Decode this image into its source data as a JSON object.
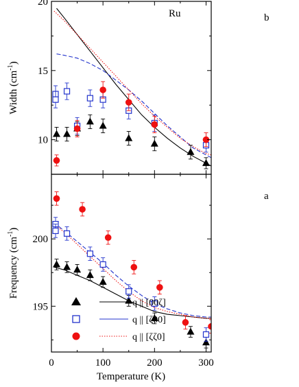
{
  "chart_data": [
    {
      "id": "b",
      "type": "scatter",
      "panel_label": "b",
      "sample_label": "Ru",
      "ylabel": "Width (cm-1)",
      "ylabel_main": "Width (cm",
      "ylabel_sup": "-1",
      "ylabel_tail": ")",
      "xlim": [
        0,
        310
      ],
      "ylim": [
        7.5,
        20
      ],
      "y_ticks": [
        10,
        15,
        20
      ],
      "series": [
        {
          "marker": "triangle",
          "color": "#000000",
          "x": [
            10,
            30,
            50,
            75,
            100,
            150,
            200,
            270,
            300
          ],
          "y": [
            10.4,
            10.4,
            10.8,
            11.3,
            11.0,
            10.1,
            9.7,
            9.1,
            8.3
          ],
          "err": [
            0.5,
            0.5,
            0.5,
            0.5,
            0.5,
            0.5,
            0.5,
            0.5,
            0.4
          ]
        },
        {
          "marker": "open-square",
          "color": "#2233cc",
          "x": [
            8,
            8,
            30,
            50,
            75,
            100,
            150,
            200,
            300
          ],
          "y": [
            13.3,
            12.9,
            13.5,
            11.0,
            13.0,
            12.9,
            12.1,
            11.2,
            9.6
          ],
          "err": [
            0.6,
            0.6,
            0.6,
            0.6,
            0.6,
            0.6,
            0.6,
            0.6,
            0.5
          ]
        },
        {
          "marker": "filled-circle",
          "color": "#ee1111",
          "x": [
            10,
            50,
            100,
            150,
            200,
            300
          ],
          "y": [
            8.5,
            10.8,
            13.6,
            12.7,
            11.1,
            10.0
          ],
          "err": [
            0.4,
            0.6,
            0.6,
            0.6,
            0.6,
            0.5
          ]
        }
      ],
      "curves": [
        {
          "style": "solid",
          "color": "#000000",
          "x": [
            10,
            25,
            50,
            75,
            100,
            125,
            150,
            175,
            200,
            225,
            250,
            275,
            300,
            310
          ],
          "y": [
            19.5,
            18.8,
            17.6,
            16.4,
            15.2,
            14.0,
            12.9,
            11.8,
            10.9,
            10.1,
            9.4,
            8.8,
            8.3,
            8.1
          ]
        },
        {
          "style": "dashed",
          "color": "#2233cc",
          "x": [
            10,
            25,
            50,
            75,
            100,
            125,
            150,
            175,
            200,
            225,
            250,
            275,
            300,
            310
          ],
          "y": [
            16.2,
            16.1,
            15.9,
            15.5,
            15.0,
            14.3,
            13.6,
            12.8,
            11.9,
            11.0,
            10.2,
            9.4,
            8.9,
            8.7
          ]
        },
        {
          "style": "dotted",
          "color": "#ee1111",
          "x": [
            5,
            25,
            50,
            75,
            100,
            125,
            150,
            175,
            200,
            225,
            250,
            275,
            300,
            310
          ],
          "y": [
            19.3,
            18.6,
            17.6,
            16.6,
            15.6,
            14.6,
            13.6,
            12.6,
            11.7,
            10.9,
            10.1,
            9.5,
            9.0,
            8.9
          ]
        }
      ]
    },
    {
      "id": "a",
      "type": "scatter",
      "panel_label": "a",
      "xlabel": "Temperature (K)",
      "ylabel": "Frequency (cm-1)",
      "ylabel_main": "Frequency (cm",
      "ylabel_sup": "-1",
      "ylabel_tail": ")",
      "xlim": [
        0,
        310
      ],
      "ylim": [
        191.6,
        204.8
      ],
      "x_ticks": [
        0,
        100,
        200,
        300
      ],
      "y_ticks": [
        195,
        200
      ],
      "series": [
        {
          "name": "q || [00ζ]",
          "marker": "triangle",
          "color": "#000000",
          "x": [
            10,
            30,
            50,
            75,
            100,
            150,
            200,
            270,
            300
          ],
          "y": [
            198.1,
            197.9,
            197.7,
            197.3,
            196.8,
            195.4,
            194.1,
            193.1,
            192.3
          ],
          "err": [
            0.4,
            0.4,
            0.4,
            0.4,
            0.4,
            0.4,
            0.4,
            0.4,
            0.4
          ]
        },
        {
          "name": "q || [ζ00]",
          "marker": "open-square",
          "color": "#2233cc",
          "x": [
            8,
            8,
            30,
            75,
            100,
            150,
            200,
            300
          ],
          "y": [
            201.1,
            200.6,
            200.4,
            198.9,
            198.1,
            196.1,
            195.2,
            192.9
          ],
          "err": [
            0.5,
            0.5,
            0.5,
            0.5,
            0.5,
            0.5,
            0.5,
            0.5
          ]
        },
        {
          "name": "q || [ζζ0]",
          "marker": "filled-circle",
          "color": "#ee1111",
          "x": [
            10,
            60,
            110,
            160,
            210,
            260,
            310
          ],
          "y": [
            203.0,
            202.2,
            200.1,
            197.9,
            196.4,
            193.8,
            193.5
          ],
          "err": [
            0.5,
            0.5,
            0.5,
            0.5,
            0.5,
            0.5,
            0.5
          ]
        }
      ],
      "curves": [
        {
          "style": "solid",
          "color": "#000000",
          "x": [
            5,
            25,
            50,
            75,
            100,
            125,
            150,
            175,
            200,
            225,
            250,
            275,
            300,
            310
          ],
          "y": [
            197.9,
            197.7,
            197.3,
            196.9,
            196.4,
            195.9,
            195.4,
            195.0,
            194.6,
            194.4,
            194.3,
            194.2,
            194.1,
            194.1
          ]
        },
        {
          "style": "dashed",
          "color": "#2233cc",
          "x": [
            5,
            25,
            50,
            75,
            100,
            125,
            150,
            175,
            200,
            225,
            250,
            275,
            300,
            310
          ],
          "y": [
            201.2,
            200.6,
            199.8,
            199.0,
            198.2,
            197.3,
            196.5,
            195.8,
            195.2,
            194.8,
            194.5,
            194.3,
            194.2,
            194.2
          ]
        },
        {
          "style": "dotted",
          "color": "#ee1111",
          "x": [
            5,
            25,
            50,
            75,
            100,
            125,
            150,
            175,
            200,
            225,
            250,
            275,
            300,
            310
          ],
          "y": [
            201.1,
            200.5,
            199.6,
            198.7,
            197.8,
            196.9,
            196.1,
            195.4,
            194.9,
            194.6,
            194.4,
            194.2,
            194.1,
            194.1
          ]
        }
      ]
    }
  ],
  "legend": {
    "placement": "bottom-left",
    "entries": [
      {
        "label": "q || [00ζ]",
        "marker": "triangle",
        "line": "solid",
        "color": "#000000"
      },
      {
        "label": "q || [ζ00]",
        "marker": "open-square",
        "line": "solid",
        "color": "#2233cc"
      },
      {
        "label": "q || [ζζ0]",
        "marker": "filled-circle",
        "line": "dotted",
        "color": "#ee1111"
      }
    ]
  }
}
